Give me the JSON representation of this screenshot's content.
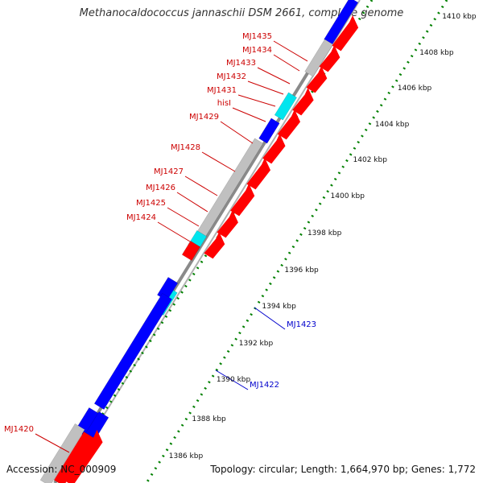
{
  "title": "Methanocaldococcus jannaschii DSM 2661, complete genome",
  "footer": {
    "accession": "Accession: NC_000909",
    "summary": "Topology: circular; Length: 1,664,970 bp; Genes: 1,772"
  },
  "colors": {
    "forward_cds": "#ff0000",
    "reverse_cds": "#0000ff",
    "rna": "#00e5ee",
    "pseudo": "#c0c0c0",
    "tick": "#008000",
    "backbone": "#808080",
    "label_forward": "#cc0000",
    "label_reverse": "#0000cc"
  },
  "ticks": [
    {
      "label": "1386 kbp"
    },
    {
      "label": "1388 kbp"
    },
    {
      "label": "1390 kbp"
    },
    {
      "label": "1392 kbp"
    },
    {
      "label": "1394 kbp"
    },
    {
      "label": "1396 kbp"
    },
    {
      "label": "1398 kbp"
    },
    {
      "label": "1400 kbp"
    },
    {
      "label": "1402 kbp"
    },
    {
      "label": "1404 kbp"
    },
    {
      "label": "1406 kbp"
    },
    {
      "label": "1408 kbp"
    },
    {
      "label": "1410 kbp"
    }
  ],
  "gene_labels": [
    {
      "name": "MJ1435",
      "strand": "forward"
    },
    {
      "name": "MJ1434",
      "strand": "forward"
    },
    {
      "name": "MJ1433",
      "strand": "forward"
    },
    {
      "name": "MJ1432",
      "strand": "forward"
    },
    {
      "name": "MJ1431",
      "strand": "forward"
    },
    {
      "name": "hisI",
      "strand": "forward"
    },
    {
      "name": "MJ1429",
      "strand": "forward"
    },
    {
      "name": "MJ1428",
      "strand": "forward"
    },
    {
      "name": "MJ1427",
      "strand": "forward"
    },
    {
      "name": "MJ1426",
      "strand": "forward"
    },
    {
      "name": "MJ1425",
      "strand": "forward"
    },
    {
      "name": "MJ1424",
      "strand": "forward"
    },
    {
      "name": "MJ1423",
      "strand": "reverse"
    },
    {
      "name": "MJ1422",
      "strand": "reverse"
    },
    {
      "name": "MJ1420",
      "strand": "forward"
    }
  ]
}
